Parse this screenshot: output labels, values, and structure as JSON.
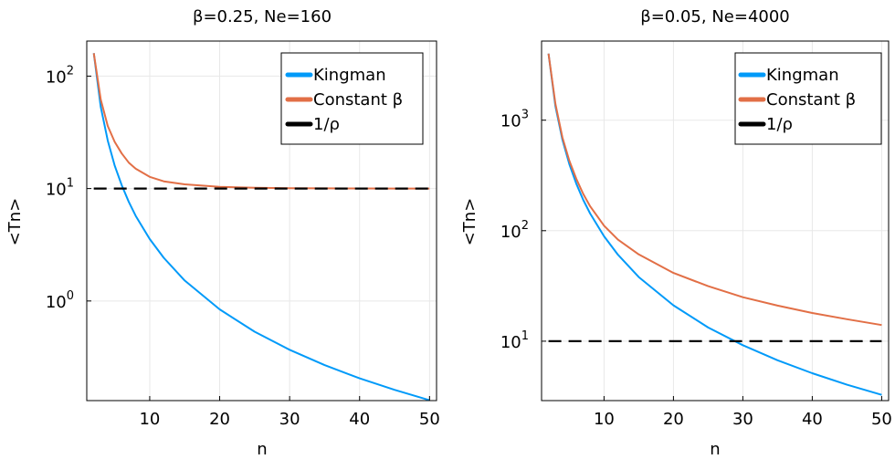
{
  "chart_data": [
    {
      "type": "line",
      "title": "β=0.25, Ne=160",
      "xlabel": "n",
      "ylabel": "<Tn>",
      "yscale": "log",
      "xlim": [
        1,
        51
      ],
      "ylim": [
        0.13,
        205
      ],
      "xticks": [
        10,
        20,
        30,
        40,
        50
      ],
      "xtick_labels": [
        "10",
        "20",
        "30",
        "40",
        "50"
      ],
      "yticks": [
        1,
        10,
        100
      ],
      "ytick_labels": [
        [
          "10",
          "0"
        ],
        [
          "10",
          "1"
        ],
        [
          "10",
          "2"
        ]
      ],
      "grid": true,
      "legend_position": "top-right",
      "series": [
        {
          "name": "Kingman",
          "color": "#009af9",
          "style": "solid",
          "x": [
            2,
            3,
            4,
            5,
            6,
            7,
            8,
            10,
            12,
            15,
            20,
            25,
            30,
            35,
            40,
            45,
            50
          ],
          "y": [
            160,
            53.3,
            26.7,
            16,
            10.7,
            7.62,
            5.71,
            3.56,
            2.42,
            1.52,
            0.842,
            0.533,
            0.368,
            0.269,
            0.205,
            0.162,
            0.131
          ]
        },
        {
          "name": "Constant β",
          "color": "#e26f46",
          "style": "solid",
          "x": [
            2,
            3,
            4,
            5,
            6,
            7,
            8,
            10,
            12,
            15,
            20,
            25,
            30,
            35,
            40,
            45,
            50
          ],
          "y": [
            160,
            62,
            36,
            26,
            20.5,
            17,
            15,
            12.7,
            11.6,
            10.9,
            10.35,
            10.15,
            10.07,
            10.04,
            10.02,
            10.01,
            10.0
          ]
        },
        {
          "name": "1/ρ",
          "color": "#000000",
          "style": "dashed",
          "x": [
            2,
            50
          ],
          "y": [
            10,
            10
          ]
        }
      ]
    },
    {
      "type": "line",
      "title": "β=0.05, Ne=4000",
      "xlabel": "n",
      "ylabel": "<Tn>",
      "yscale": "log",
      "xlim": [
        1,
        51
      ],
      "ylim": [
        2.9,
        5200
      ],
      "xticks": [
        10,
        20,
        30,
        40,
        50
      ],
      "xtick_labels": [
        "10",
        "20",
        "30",
        "40",
        "50"
      ],
      "yticks": [
        10,
        100,
        1000
      ],
      "ytick_labels": [
        [
          "10",
          "1"
        ],
        [
          "10",
          "2"
        ],
        [
          "10",
          "3"
        ]
      ],
      "grid": true,
      "legend_position": "top-right",
      "series": [
        {
          "name": "Kingman",
          "color": "#009af9",
          "style": "solid",
          "x": [
            2,
            3,
            4,
            5,
            6,
            7,
            8,
            10,
            12,
            15,
            20,
            25,
            30,
            35,
            40,
            45,
            50
          ],
          "y": [
            4000,
            1333,
            667,
            400,
            267,
            190,
            143,
            89,
            60.6,
            38.1,
            21.1,
            13.3,
            9.2,
            6.72,
            5.13,
            4.04,
            3.27
          ]
        },
        {
          "name": "Constant β",
          "color": "#e26f46",
          "style": "solid",
          "x": [
            2,
            3,
            4,
            5,
            6,
            7,
            8,
            10,
            12,
            15,
            20,
            25,
            30,
            35,
            40,
            45,
            50
          ],
          "y": [
            4000,
            1400,
            700,
            430,
            295,
            215,
            166,
            111,
            83,
            61,
            41.5,
            31.5,
            25,
            21,
            18,
            15.8,
            14
          ]
        },
        {
          "name": "1/ρ",
          "color": "#000000",
          "style": "dashed",
          "x": [
            2,
            50
          ],
          "y": [
            10,
            10
          ]
        }
      ]
    }
  ]
}
